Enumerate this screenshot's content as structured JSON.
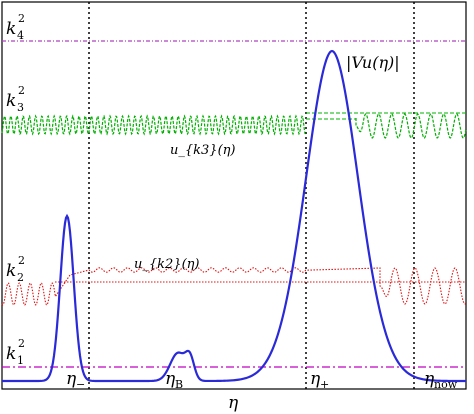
{
  "figure": {
    "x_axis_label": "η",
    "levels": [
      {
        "name": "k4",
        "base": "k",
        "sub": "4",
        "sup": "2",
        "color": "#b040c0"
      },
      {
        "name": "k3",
        "base": "k",
        "sub": "3",
        "sup": "2",
        "color": "#00b000"
      },
      {
        "name": "k2",
        "base": "k",
        "sub": "2",
        "sup": "2",
        "color": "#e01010"
      },
      {
        "name": "k1",
        "base": "k",
        "sub": "1",
        "sup": "2",
        "color": "#c000c0"
      }
    ],
    "potential_label": "|V_u(η)|",
    "potential_label_text": "|Vu(η)|",
    "mode_label_k3": "u_{k3}(η)",
    "mode_label_k2": "u_{k2}(η)",
    "time_markers": [
      {
        "name": "eta-minus",
        "text": "η",
        "sub": "−"
      },
      {
        "name": "eta-B",
        "text": "η",
        "sub": "B"
      },
      {
        "name": "eta-plus",
        "text": "η",
        "sub": "+"
      },
      {
        "name": "eta-now",
        "text": "η",
        "sub": "now"
      }
    ],
    "colors": {
      "potential": "#2a2ad8",
      "k4": "#b040c0",
      "k3": "#00b000",
      "k2": "#e01010",
      "k1": "#c000c0",
      "axes": "#000000"
    }
  }
}
